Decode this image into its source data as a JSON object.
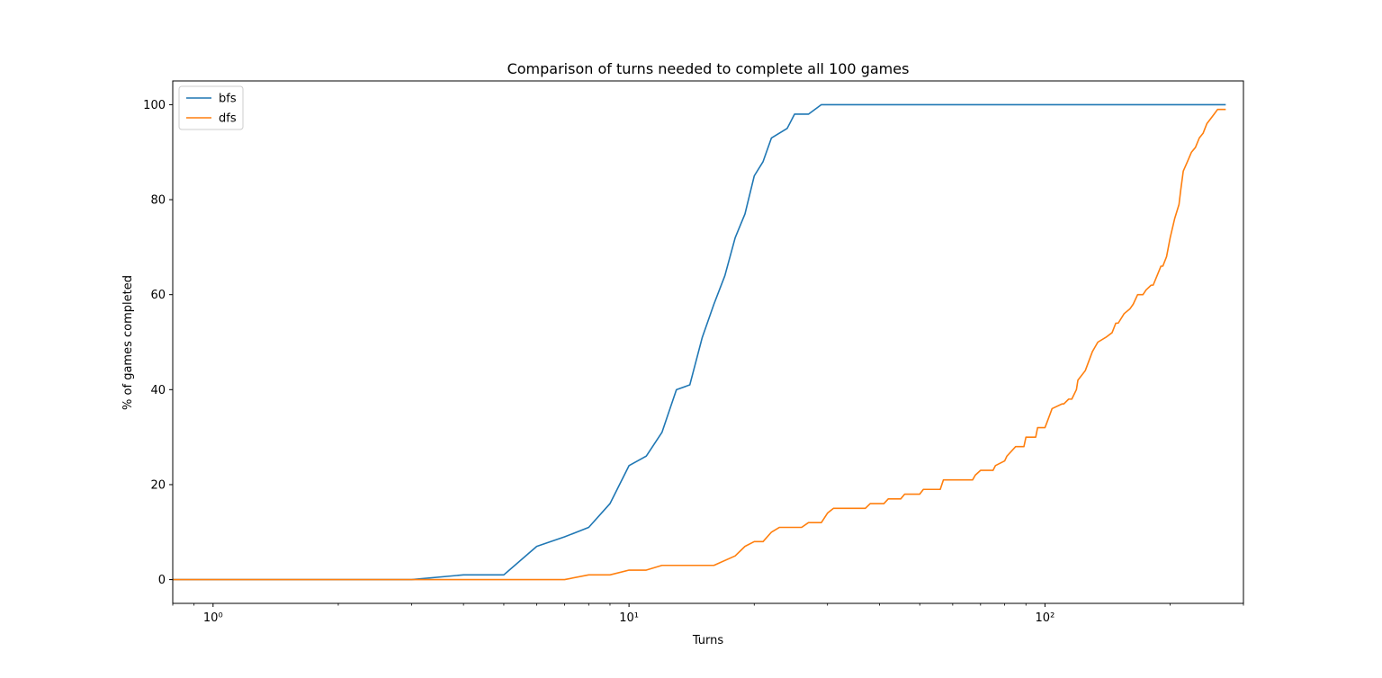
{
  "chart_data": {
    "type": "line",
    "title": "Comparison of turns needed to complete all 100 games",
    "xlabel": "Turns",
    "ylabel": "% of games completed",
    "xscale": "log",
    "xlim": [
      0.8,
      300
    ],
    "ylim": [
      -5,
      105
    ],
    "xticks": [
      1,
      10,
      100
    ],
    "xtick_labels": [
      "10⁰",
      "10¹",
      "10²"
    ],
    "yticks": [
      0,
      20,
      40,
      60,
      80,
      100
    ],
    "ytick_labels": [
      "0",
      "20",
      "40",
      "60",
      "80",
      "100"
    ],
    "grid": false,
    "legend_position": "top-left",
    "series": [
      {
        "name": "bfs",
        "color": "#1f77b4",
        "x": [
          0.8,
          1,
          2,
          3,
          4,
          5,
          6,
          7,
          8,
          9,
          10,
          11,
          12,
          13,
          14,
          15,
          16,
          17,
          18,
          19,
          20,
          21,
          22,
          24,
          25,
          27,
          29,
          272
        ],
        "y": [
          0,
          0,
          0,
          0,
          1,
          1,
          7,
          9,
          11,
          16,
          24,
          26,
          31,
          40,
          41,
          51,
          58,
          64,
          72,
          77,
          85,
          88,
          93,
          95,
          98,
          98,
          100,
          100
        ]
      },
      {
        "name": "dfs",
        "color": "#ff7f0e",
        "x": [
          0.8,
          1,
          2,
          3,
          4,
          5,
          6,
          7,
          8,
          9,
          10,
          11,
          12,
          16,
          18,
          19,
          20,
          21,
          22,
          23,
          26,
          27,
          29,
          30,
          31,
          37,
          38,
          41,
          42,
          45,
          46,
          50,
          51,
          56,
          57,
          67,
          68,
          70,
          75,
          76,
          80,
          81,
          85,
          86,
          89,
          90,
          95,
          96,
          100,
          101,
          103,
          104,
          110,
          111,
          114,
          116,
          119,
          120,
          125,
          130,
          132,
          134,
          140,
          145,
          148,
          150,
          155,
          160,
          163,
          167,
          172,
          175,
          180,
          182,
          186,
          190,
          192,
          196,
          200,
          205,
          210,
          212,
          215,
          220,
          225,
          230,
          235,
          240,
          245,
          250,
          255,
          260,
          265,
          272
        ],
        "y": [
          0,
          0,
          0,
          0,
          0,
          0,
          0,
          0,
          1,
          1,
          2,
          2,
          3,
          3,
          5,
          7,
          8,
          8,
          10,
          11,
          11,
          12,
          12,
          14,
          15,
          15,
          16,
          16,
          17,
          17,
          18,
          18,
          19,
          19,
          21,
          21,
          22,
          23,
          23,
          24,
          25,
          26,
          28,
          28,
          28,
          30,
          30,
          32,
          32,
          33,
          35,
          36,
          37,
          37,
          38,
          38,
          40,
          42,
          44,
          48,
          49,
          50,
          51,
          52,
          54,
          54,
          56,
          57,
          58,
          60,
          60,
          61,
          62,
          62,
          64,
          66,
          66,
          68,
          72,
          76,
          79,
          82,
          86,
          88,
          90,
          91,
          93,
          94,
          96,
          97,
          98,
          99,
          99,
          99
        ]
      }
    ]
  }
}
